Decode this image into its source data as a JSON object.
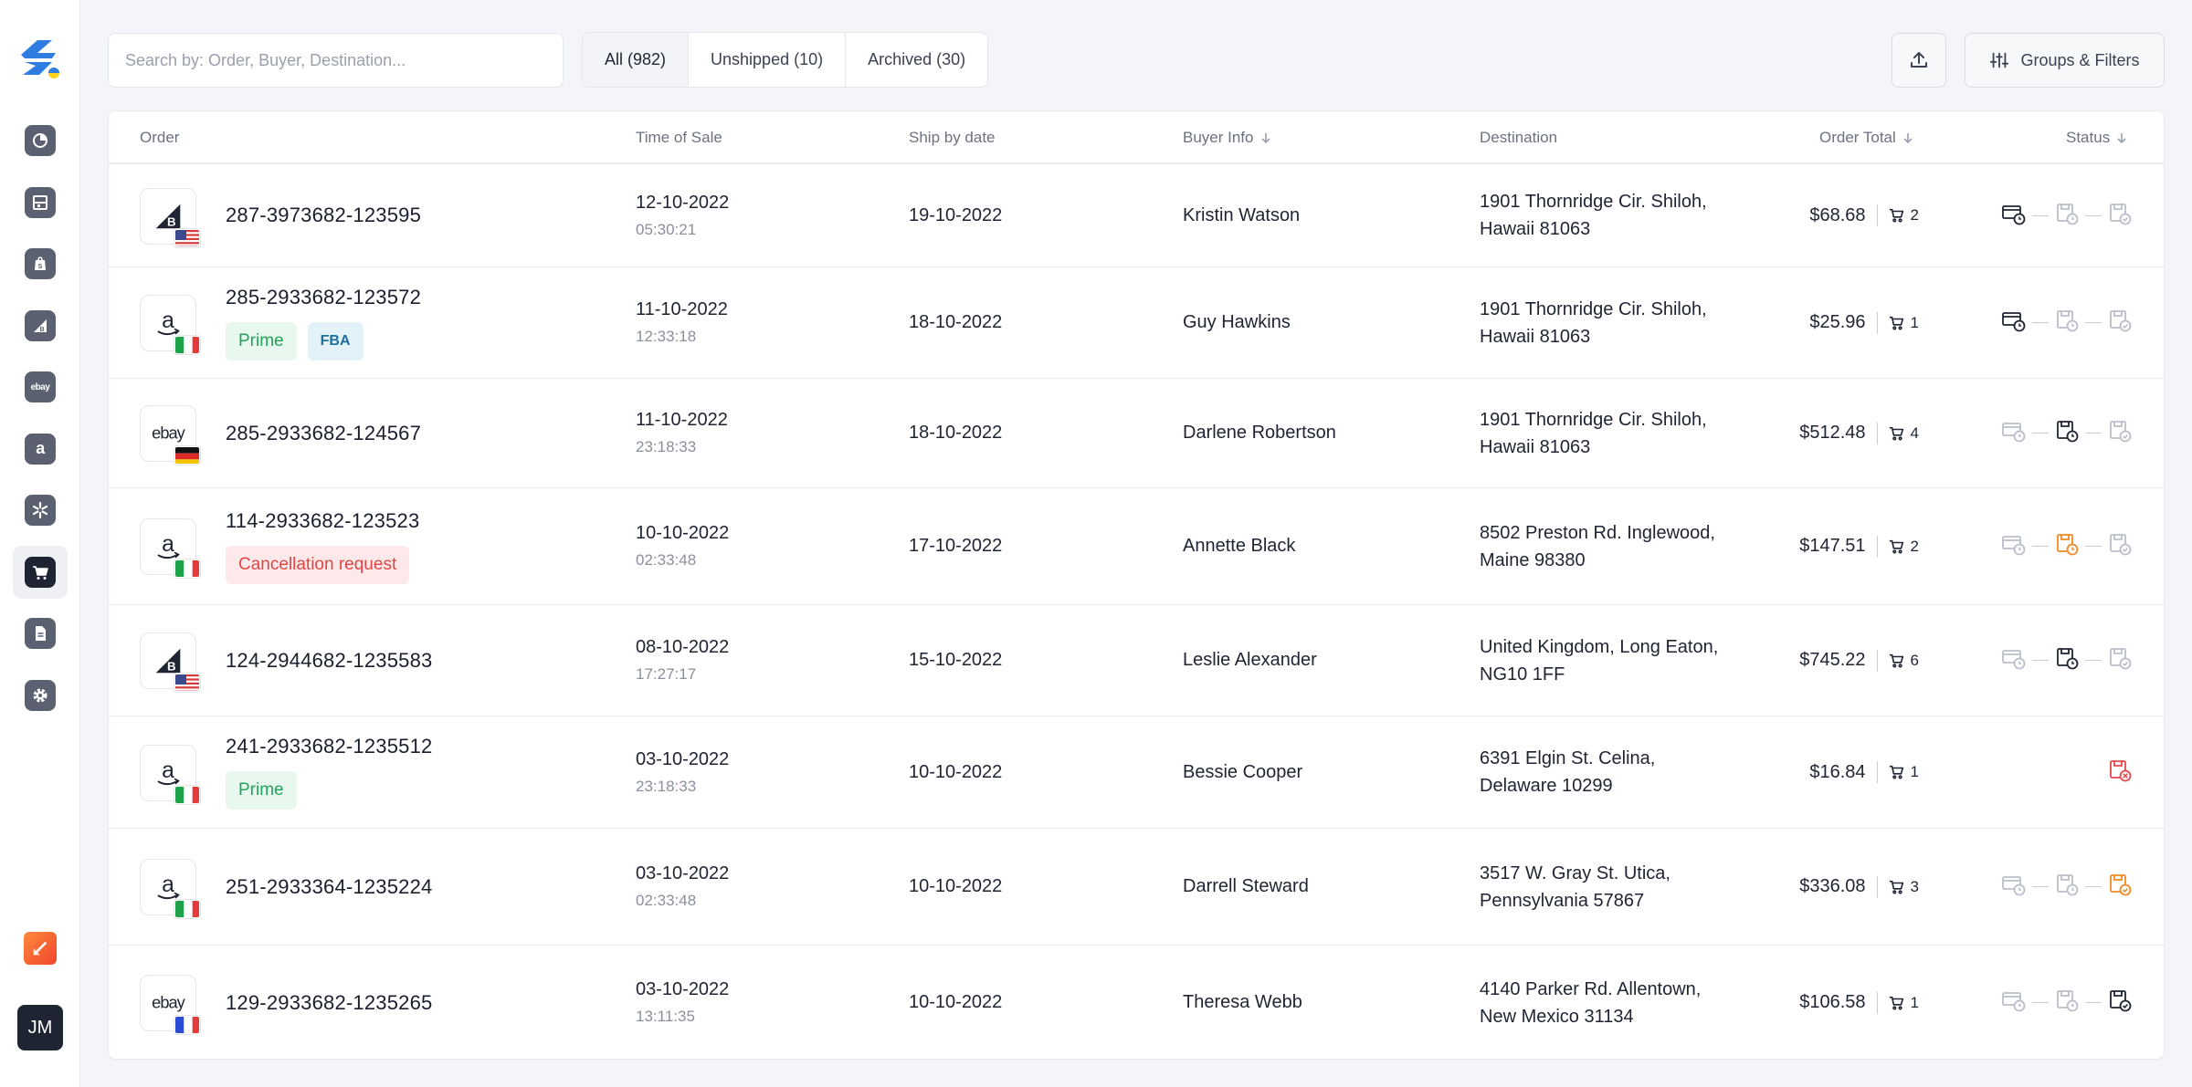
{
  "sidebar": {
    "items": [
      {
        "name": "dashboard-icon"
      },
      {
        "name": "warehouse-icon"
      },
      {
        "name": "shopify-icon"
      },
      {
        "name": "bigcommerce-icon"
      },
      {
        "name": "ebay-icon",
        "text": "ebay"
      },
      {
        "name": "amazon-icon",
        "text": "a"
      },
      {
        "name": "walmart-icon"
      },
      {
        "name": "orders-cart-icon",
        "active": true
      },
      {
        "name": "documents-icon"
      },
      {
        "name": "settings-gear-icon"
      }
    ],
    "avatar": "JM"
  },
  "search": {
    "placeholder": "Search by: Order, Buyer, Destination..."
  },
  "tabs": [
    {
      "label": "All (982)",
      "active": true
    },
    {
      "label": "Unshipped (10)"
    },
    {
      "label": "Archived (30)"
    }
  ],
  "toolbar": {
    "filters_label": "Groups & Filters"
  },
  "columns": {
    "order": "Order",
    "time_of_sale": "Time of Sale",
    "ship_by": "Ship by date",
    "buyer": "Buyer Info",
    "destination": "Destination",
    "total": "Order Total",
    "status": "Status"
  },
  "orders": [
    {
      "marketplace": "bigcommerce",
      "flag": "us",
      "order_no": "287-3973682-123595",
      "badges": [],
      "sale_date": "12-10-2022",
      "sale_time": "05:30:21",
      "ship_by": "19-10-2022",
      "buyer": "Kristin Watson",
      "dest1": "1901 Thornridge Cir. Shiloh,",
      "dest2": "Hawaii 81063",
      "total": "$68.68",
      "qty": "2",
      "status": [
        "active",
        "muted",
        "muted"
      ]
    },
    {
      "marketplace": "amazon",
      "flag": "it",
      "order_no": "285-2933682-123572",
      "badges": [
        {
          "label": "Prime",
          "type": "prime"
        },
        {
          "label": "FBA",
          "type": "fba"
        }
      ],
      "sale_date": "11-10-2022",
      "sale_time": "12:33:18",
      "ship_by": "18-10-2022",
      "buyer": "Guy Hawkins",
      "dest1": "1901 Thornridge Cir. Shiloh,",
      "dest2": "Hawaii 81063",
      "total": "$25.96",
      "qty": "1",
      "status": [
        "active",
        "muted",
        "muted"
      ]
    },
    {
      "marketplace": "ebay",
      "flag": "de",
      "order_no": "285-2933682-124567",
      "badges": [],
      "sale_date": "11-10-2022",
      "sale_time": "23:18:33",
      "ship_by": "18-10-2022",
      "buyer": "Darlene Robertson",
      "dest1": "1901 Thornridge Cir. Shiloh,",
      "dest2": "Hawaii 81063",
      "total": "$512.48",
      "qty": "4",
      "status": [
        "muted",
        "active",
        "muted"
      ]
    },
    {
      "marketplace": "amazon",
      "flag": "it",
      "order_no": "114-2933682-123523",
      "badges": [
        {
          "label": "Cancellation request",
          "type": "cancel"
        }
      ],
      "sale_date": "10-10-2022",
      "sale_time": "02:33:48",
      "ship_by": "17-10-2022",
      "buyer": "Annette Black",
      "dest1": "8502 Preston Rd. Inglewood,",
      "dest2": "Maine 98380",
      "total": "$147.51",
      "qty": "2",
      "status": [
        "muted",
        "warning",
        "muted"
      ]
    },
    {
      "marketplace": "bigcommerce",
      "flag": "us",
      "order_no": "124-2944682-1235583",
      "badges": [],
      "sale_date": "08-10-2022",
      "sale_time": "17:27:17",
      "ship_by": "15-10-2022",
      "buyer": "Leslie Alexander",
      "dest1": "United Kingdom, Long Eaton,",
      "dest2": "NG10 1FF",
      "total": "$745.22",
      "qty": "6",
      "status": [
        "muted",
        "active",
        "muted"
      ]
    },
    {
      "marketplace": "amazon",
      "flag": "it",
      "order_no": "241-2933682-1235512",
      "badges": [
        {
          "label": "Prime",
          "type": "prime"
        }
      ],
      "sale_date": "03-10-2022",
      "sale_time": "23:18:33",
      "ship_by": "10-10-2022",
      "buyer": "Bessie Cooper",
      "dest1": "6391 Elgin St. Celina,",
      "dest2": "Delaware 10299",
      "total": "$16.84",
      "qty": "1",
      "status": [
        "cancelled"
      ]
    },
    {
      "marketplace": "amazon",
      "flag": "it",
      "order_no": "251-2933364-1235224",
      "badges": [],
      "sale_date": "03-10-2022",
      "sale_time": "02:33:48",
      "ship_by": "10-10-2022",
      "buyer": "Darrell Steward",
      "dest1": "3517 W. Gray St. Utica,",
      "dest2": "Pennsylvania 57867",
      "total": "$336.08",
      "qty": "3",
      "status": [
        "muted",
        "muted",
        "warning-check"
      ]
    },
    {
      "marketplace": "ebay",
      "flag": "fr",
      "order_no": "129-2933682-1235265",
      "badges": [],
      "sale_date": "03-10-2022",
      "sale_time": "13:11:35",
      "ship_by": "10-10-2022",
      "buyer": "Theresa Webb",
      "dest1": "4140 Parker Rd. Allentown,",
      "dest2": "New Mexico 31134",
      "total": "$106.58",
      "qty": "1",
      "status": [
        "muted",
        "muted",
        "active-check"
      ]
    }
  ],
  "colors": {
    "active": "#1f2433",
    "muted": "#b9bec8",
    "warning": "#f08a24",
    "danger": "#e5484d"
  }
}
